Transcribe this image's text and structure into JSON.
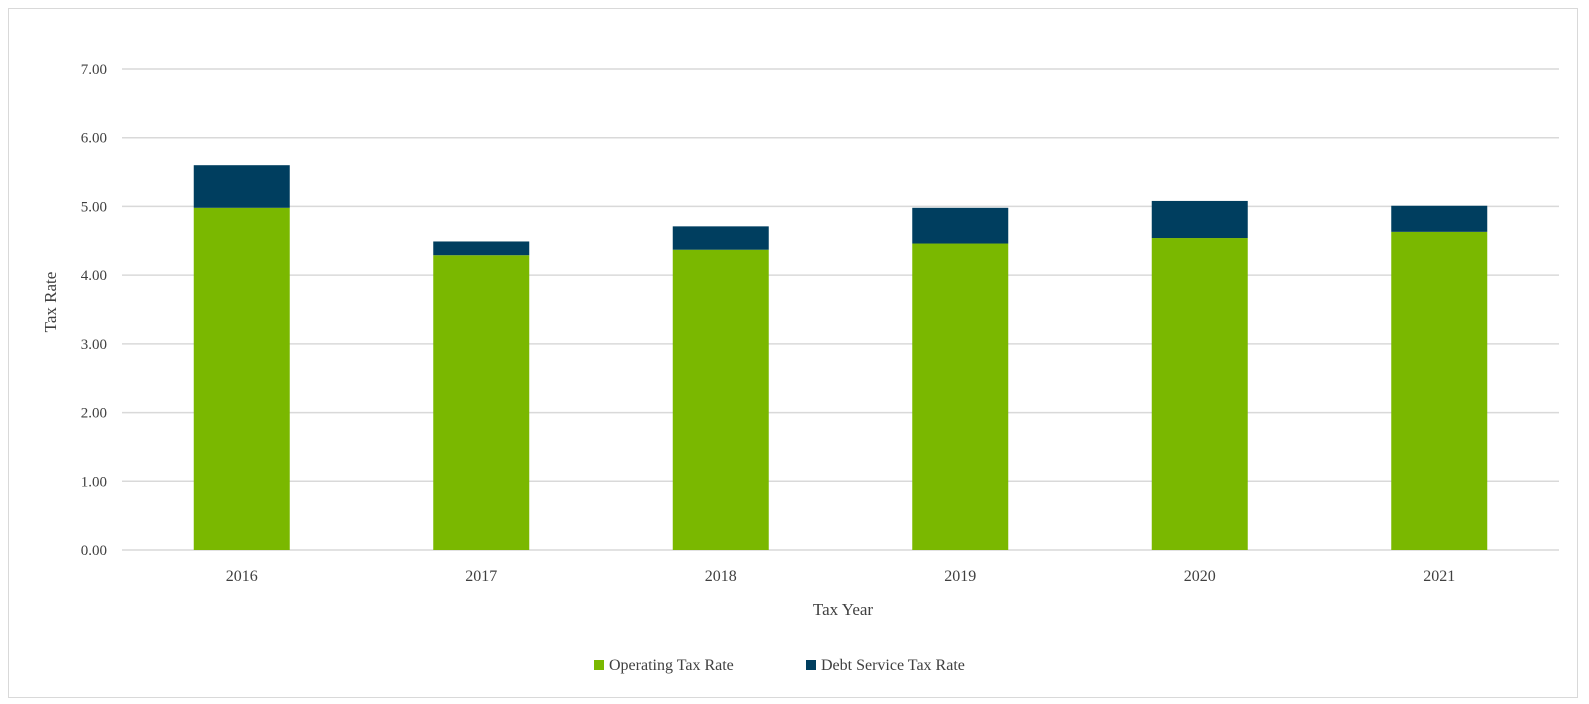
{
  "chart_data": {
    "type": "bar",
    "stacked": true,
    "categories": [
      "2016",
      "2017",
      "2018",
      "2019",
      "2020",
      "2021"
    ],
    "series": [
      {
        "name": "Operating Tax Rate",
        "color": "#7ab800",
        "values": [
          4.98,
          4.29,
          4.37,
          4.46,
          4.54,
          4.63
        ]
      },
      {
        "name": "Debt Service Tax Rate",
        "color": "#003e5f",
        "values": [
          0.62,
          0.2,
          0.34,
          0.52,
          0.54,
          0.38
        ]
      }
    ],
    "xlabel": "Tax Year",
    "ylabel": "Tax Rate",
    "ylim": [
      0,
      7
    ],
    "yticks": [
      "0.00",
      "1.00",
      "2.00",
      "3.00",
      "4.00",
      "5.00",
      "6.00",
      "7.00"
    ],
    "grid": true,
    "legend_position": "bottom",
    "gridline_color": "#d9d9d9"
  }
}
